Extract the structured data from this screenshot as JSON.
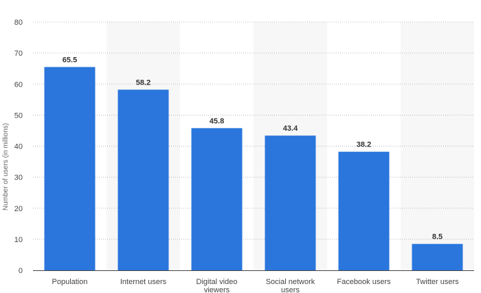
{
  "chart_data": {
    "type": "bar",
    "categories": [
      [
        "Population"
      ],
      [
        "Internet users"
      ],
      [
        "Digital video",
        "viewers"
      ],
      [
        "Social network",
        "users"
      ],
      [
        "Facebook users"
      ],
      [
        "Twitter users"
      ]
    ],
    "values": [
      65.5,
      58.2,
      45.8,
      43.4,
      38.2,
      8.5
    ],
    "value_labels": [
      "65.5",
      "58.2",
      "45.8",
      "43.4",
      "38.2",
      "8.5"
    ],
    "title": "",
    "xlabel": "",
    "ylabel": "Number of users (in millions)",
    "ylim": [
      0,
      80
    ],
    "yticks": [
      0,
      10,
      20,
      30,
      40,
      50,
      60,
      70,
      80
    ],
    "grid": true,
    "bar_color": "#2a76dd",
    "alt_band_color": "#f7f7f7"
  }
}
